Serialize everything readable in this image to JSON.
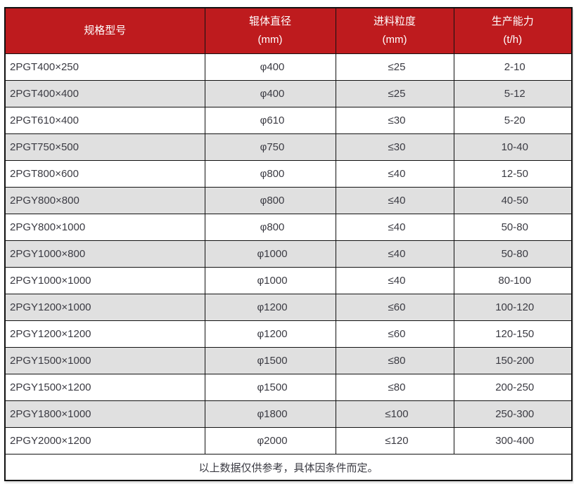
{
  "table": {
    "column_keys": [
      "model",
      "roller-diameter",
      "feed-size",
      "capacity"
    ],
    "headers": [
      {
        "line1": "规格型号",
        "line2": ""
      },
      {
        "line1": "辊体直径",
        "line2": "(mm)"
      },
      {
        "line1": "进料粒度",
        "line2": "(mm)"
      },
      {
        "line1": "生产能力",
        "line2": "(t/h)"
      }
    ],
    "rows": [
      [
        "2PGT400×250",
        "φ400",
        "≤25",
        "2-10"
      ],
      [
        "2PGT400×400",
        "φ400",
        "≤25",
        "5-12"
      ],
      [
        "2PGT610×400",
        "φ610",
        "≤30",
        "5-20"
      ],
      [
        "2PGT750×500",
        "φ750",
        "≤30",
        "10-40"
      ],
      [
        "2PGT800×600",
        "φ800",
        "≤40",
        "12-50"
      ],
      [
        "2PGY800×800",
        "φ800",
        "≤40",
        "40-50"
      ],
      [
        "2PGY800×1000",
        "φ800",
        "≤40",
        "50-80"
      ],
      [
        "2PGY1000×800",
        "φ1000",
        "≤40",
        "50-80"
      ],
      [
        "2PGY1000×1000",
        "φ1000",
        "≤40",
        "80-100"
      ],
      [
        "2PGY1200×1000",
        "φ1200",
        "≤60",
        "100-120"
      ],
      [
        "2PGY1200×1200",
        "φ1200",
        "≤60",
        "120-150"
      ],
      [
        "2PGY1500×1000",
        "φ1500",
        "≤80",
        "150-200"
      ],
      [
        "2PGY1500×1200",
        "φ1500",
        "≤80",
        "200-250"
      ],
      [
        "2PGY1800×1000",
        "φ1800",
        "≤100",
        "250-300"
      ],
      [
        "2PGY2000×1200",
        "φ2000",
        "≤120",
        "300-400"
      ]
    ],
    "footer": "以上数据仅供参考，具体因条件而定。"
  },
  "colors": {
    "header_background": "#be1b1e",
    "header_text": "#ffffff",
    "stripe_row": "#e0e0e0",
    "border": "#121212",
    "body_text": "#3b3b43"
  }
}
